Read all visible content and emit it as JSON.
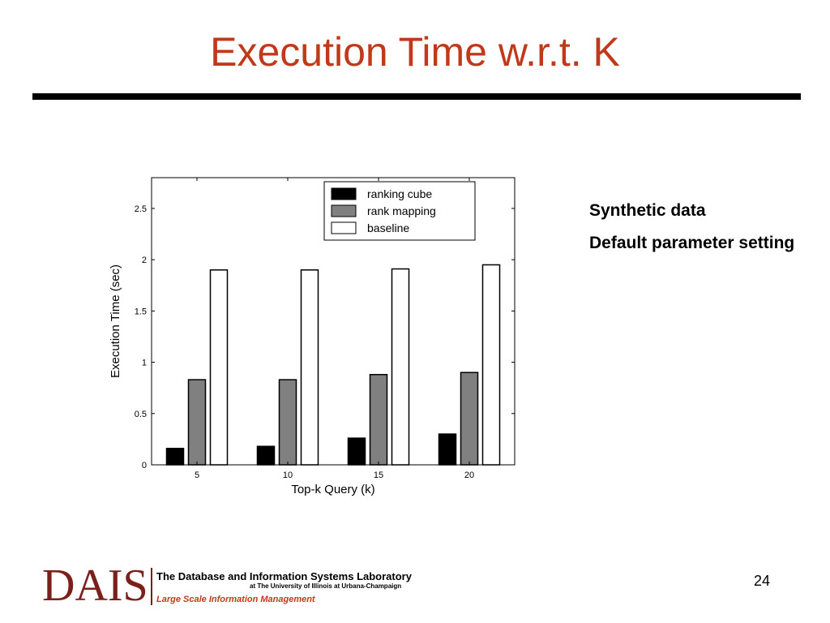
{
  "slide": {
    "title": "Execution Time w.r.t. K",
    "notes": [
      "Synthetic data",
      "Default parameter setting"
    ],
    "page_number": "24"
  },
  "footer": {
    "logo_text": "DAIS",
    "lab_name": "The Database and Information Systems Laboratory",
    "university": "at The University of Illinois at Urbana-Champaign",
    "tagline": "Large Scale Information Management"
  },
  "colors": {
    "title": "#c0391b",
    "logo": "#7b1f1a",
    "tagline": "#c0391b"
  },
  "chart_data": {
    "type": "bar",
    "categories": [
      "5",
      "10",
      "15",
      "20"
    ],
    "series": [
      {
        "name": "ranking cube",
        "values": [
          0.16,
          0.18,
          0.26,
          0.3
        ],
        "color": "#000000"
      },
      {
        "name": "rank mapping",
        "values": [
          0.83,
          0.83,
          0.88,
          0.9
        ],
        "color": "#808080"
      },
      {
        "name": "baseline",
        "values": [
          1.9,
          1.9,
          1.91,
          1.95
        ],
        "color": "#ffffff"
      }
    ],
    "title": "",
    "xlabel": "Top-k Query (k)",
    "ylabel": "Execution Time (sec)",
    "ylim": [
      0,
      2.8
    ],
    "yticks": [
      0,
      0.5,
      1,
      1.5,
      2,
      2.5
    ],
    "ytick_labels": [
      "0",
      "0.5",
      "1",
      "1.5",
      "2",
      "2.5"
    ],
    "grid": false,
    "legend": "top-right"
  }
}
